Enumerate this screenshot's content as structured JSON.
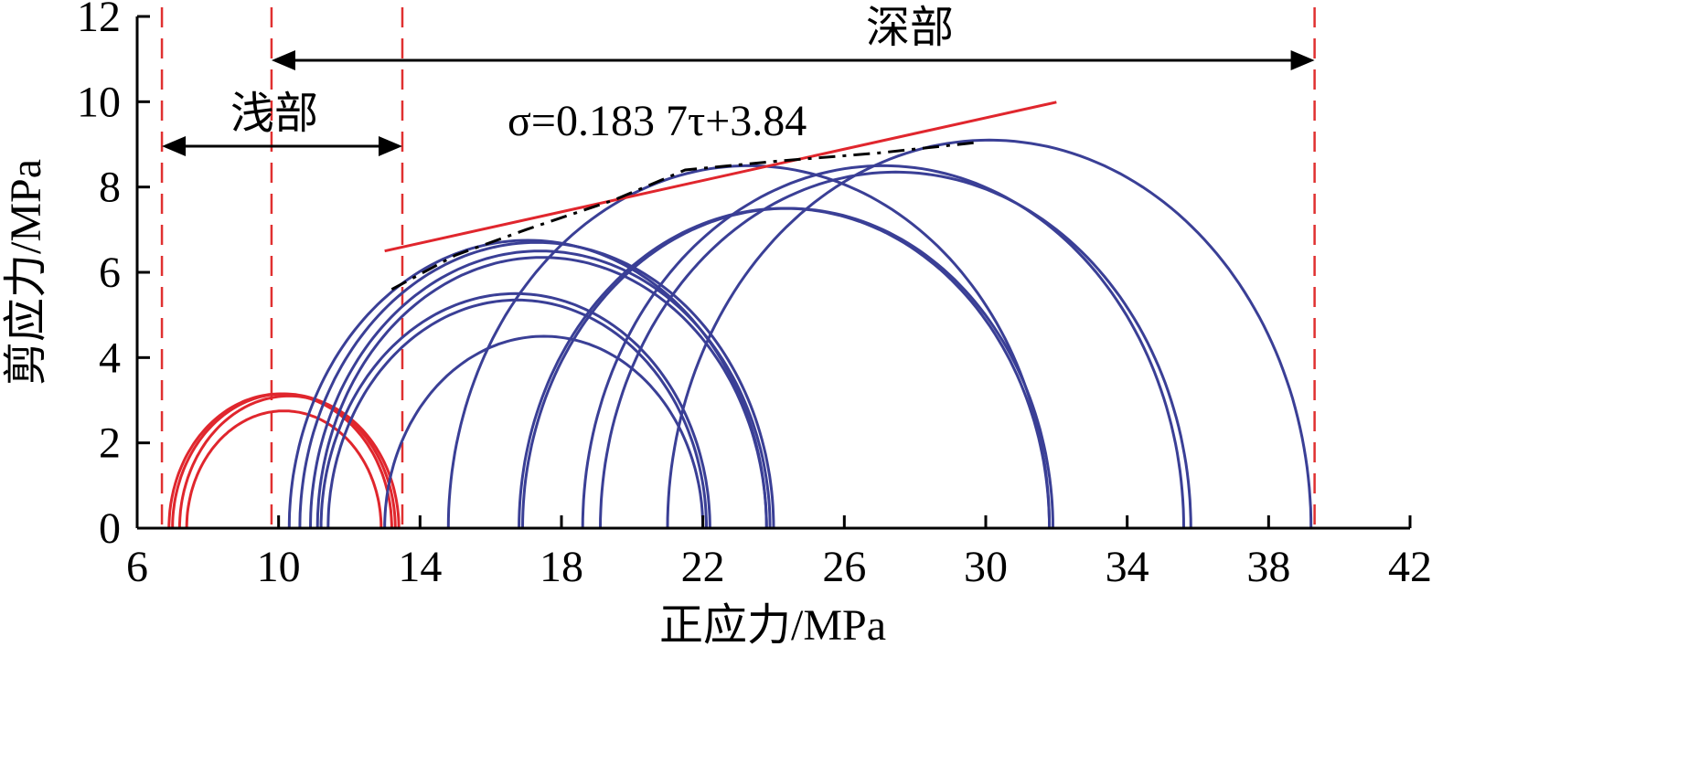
{
  "chart_data": {
    "type": "line",
    "title": "",
    "xlabel": "正应力/MPa",
    "ylabel": "剪应力/MPa",
    "xlim": [
      6,
      42
    ],
    "ylim": [
      0,
      12
    ],
    "xticks": [
      "6",
      "10",
      "14",
      "18",
      "22",
      "26",
      "30",
      "34",
      "38",
      "42"
    ],
    "yticks": [
      "0",
      "2",
      "4",
      "6",
      "8",
      "10",
      "12"
    ],
    "grid": false,
    "annotations": {
      "shallow_label": "浅部",
      "deep_label": "深部",
      "equation": "σ=0.183 7τ+3.84"
    },
    "boundaries": [
      {
        "x": 6.7,
        "color": "#e03030"
      },
      {
        "x": 9.8,
        "color": "#e03030"
      },
      {
        "x": 13.5,
        "color": "#e03030"
      },
      {
        "x": 39.3,
        "color": "#e03030"
      }
    ],
    "ranges": {
      "shallow": [
        6.7,
        13.5
      ],
      "deep": [
        9.8,
        39.3
      ]
    },
    "series": [
      {
        "group": "shallow",
        "color": "#e0262d",
        "circles": [
          {
            "s3": 6.9,
            "s1": 13.2
          },
          {
            "s3": 7.0,
            "s1": 13.3
          },
          {
            "s3": 7.2,
            "s1": 13.4
          },
          {
            "s3": 7.4,
            "s1": 12.9
          }
        ]
      },
      {
        "group": "deep",
        "color": "#3a3f96",
        "circles": [
          {
            "s3": 10.3,
            "s1": 23.8
          },
          {
            "s3": 10.6,
            "s1": 24.0
          },
          {
            "s3": 10.9,
            "s1": 23.9
          },
          {
            "s3": 11.1,
            "s1": 23.8
          },
          {
            "s3": 11.2,
            "s1": 22.2
          },
          {
            "s3": 11.4,
            "s1": 22.1
          },
          {
            "s3": 13.0,
            "s1": 22.0
          },
          {
            "s3": 14.8,
            "s1": 31.8
          },
          {
            "s3": 16.8,
            "s1": 31.8
          },
          {
            "s3": 16.9,
            "s1": 31.9
          },
          {
            "s3": 18.6,
            "s1": 35.6
          },
          {
            "s3": 19.1,
            "s1": 35.8
          },
          {
            "s3": 21.0,
            "s1": 39.2
          }
        ]
      }
    ],
    "fit_line": {
      "x": [
        13.0,
        32.0
      ],
      "y": [
        6.5,
        9.99
      ],
      "color": "#e0262d"
    },
    "envelope": {
      "x": [
        13.2,
        15.0,
        17.0,
        19.5,
        21.5,
        24.0,
        27.0,
        29.8
      ],
      "y": [
        5.6,
        6.4,
        7.0,
        7.7,
        8.4,
        8.6,
        8.8,
        9.05
      ],
      "color": "#000000"
    }
  }
}
